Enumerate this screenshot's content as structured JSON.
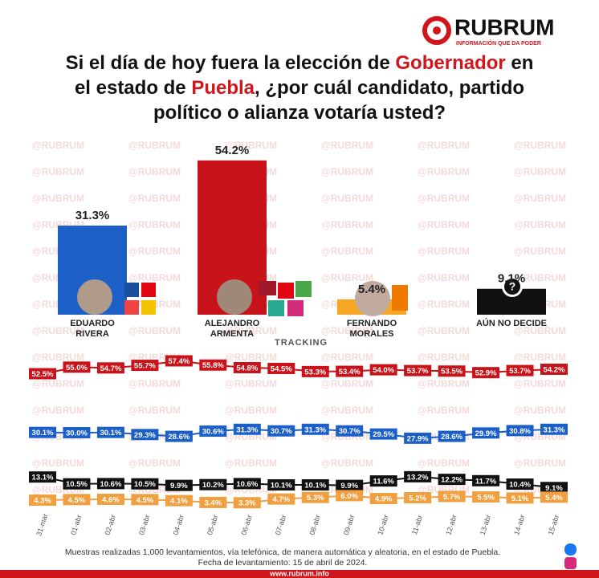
{
  "brand": {
    "name": "RUBRUM",
    "tagline": "INFORMACIÓN QUE DA PODER",
    "watermark": "@RUBRUM",
    "url": "www.rubrum.info"
  },
  "title_lines": [
    [
      {
        "text": "Si el día de hoy fuera la elección de ",
        "color": "#111111"
      },
      {
        "text": "Gobernador",
        "color": "#d0161b"
      },
      {
        "text": " en",
        "color": "#111111"
      }
    ],
    [
      {
        "text": "el estado de ",
        "color": "#111111"
      },
      {
        "text": "Puebla",
        "color": "#d0161b"
      },
      {
        "text": ", ¿por cuál candidato, partido",
        "color": "#111111"
      }
    ],
    [
      {
        "text": "político o alianza votaría usted?",
        "color": "#111111"
      }
    ]
  ],
  "chart_data": [
    {
      "type": "bar",
      "categories": [
        "EDUARDO RIVERA",
        "ALEJANDRO ARMENTA",
        "FERNANDO MORALES",
        "AÚN NO DECIDE"
      ],
      "values": [
        31.3,
        54.2,
        5.4,
        9.1
      ],
      "value_labels": [
        "31.3%",
        "54.2%",
        "5.4%",
        "9.1%"
      ],
      "colors": [
        "#1b5fc7",
        "#c8131a",
        "#f6a623",
        "#111111"
      ],
      "ylim": [
        0,
        55
      ]
    },
    {
      "type": "line",
      "title": "TRACKING",
      "x": [
        "31-mar",
        "01-abr",
        "02-abr",
        "03-abr",
        "04-abr",
        "05-abr",
        "06-abr",
        "07-abr",
        "08-abr",
        "09-abr",
        "10-abr",
        "11-abr",
        "12-abr",
        "13-abr",
        "14-abr",
        "15-abr"
      ],
      "ylim": [
        0,
        60
      ],
      "series": [
        {
          "color": "#c8131a",
          "values": [
            52.5,
            55.0,
            54.7,
            55.7,
            57.4,
            55.8,
            54.8,
            54.5,
            53.3,
            53.4,
            54.0,
            53.7,
            53.5,
            52.9,
            53.7,
            54.2
          ],
          "value_labels": [
            "52.5%",
            "55.0%",
            "54.7%",
            "55.7%",
            "57.4%",
            "55.8%",
            "54.8%",
            "54.5%",
            "53.3%",
            "53.4%",
            "54.0%",
            "53.7%",
            "53.5%",
            "52.9%",
            "53.7%",
            "54.2%"
          ]
        },
        {
          "color": "#1b5fc7",
          "values": [
            30.1,
            30.0,
            30.1,
            29.3,
            28.6,
            30.6,
            31.3,
            30.7,
            31.3,
            30.7,
            29.5,
            27.9,
            28.6,
            29.9,
            30.8,
            31.3
          ],
          "value_labels": [
            "30.1%",
            "30.0%",
            "30.1%",
            "29.3%",
            "28.6%",
            "30.6%",
            "31.3%",
            "30.7%",
            "31.3%",
            "30.7%",
            "29.5%",
            "27.9%",
            "28.6%",
            "29.9%",
            "30.8%",
            "31.3%"
          ]
        },
        {
          "color": "#111111",
          "values": [
            13.1,
            10.5,
            10.6,
            10.5,
            9.9,
            10.2,
            10.6,
            10.1,
            10.1,
            9.9,
            11.6,
            13.2,
            12.2,
            11.7,
            10.4,
            9.1
          ],
          "value_labels": [
            "13.1%",
            "10.5%",
            "10.6%",
            "10.5%",
            "9.9%",
            "10.2%",
            "10.6%",
            "10.1%",
            "10.1%",
            "9.9%",
            "11.6%",
            "13.2%",
            "12.2%",
            "11.7%",
            "10.4%",
            "9.1%"
          ]
        },
        {
          "color": "#f0a040",
          "values": [
            4.3,
            4.5,
            4.6,
            4.5,
            4.1,
            3.4,
            3.3,
            4.7,
            5.3,
            6.0,
            4.9,
            5.2,
            5.7,
            5.5,
            5.1,
            5.4
          ],
          "value_labels": [
            "4.3%",
            "4.5%",
            "4.6%",
            "4.5%",
            "4.1%",
            "3.4%",
            "3.3%",
            "4.7%",
            "5.3%",
            "6.0%",
            "4.9%",
            "5.2%",
            "5.7%",
            "5.5%",
            "5.1%",
            "5.4%"
          ]
        }
      ]
    }
  ],
  "footer": {
    "note": "Muestras realizadas 1,000 levantamientos, vía telefónica, de manera automática y aleatoria, en el estado de Puebla.",
    "date": "Fecha de levantamiento: 15 de abril de 2024."
  }
}
